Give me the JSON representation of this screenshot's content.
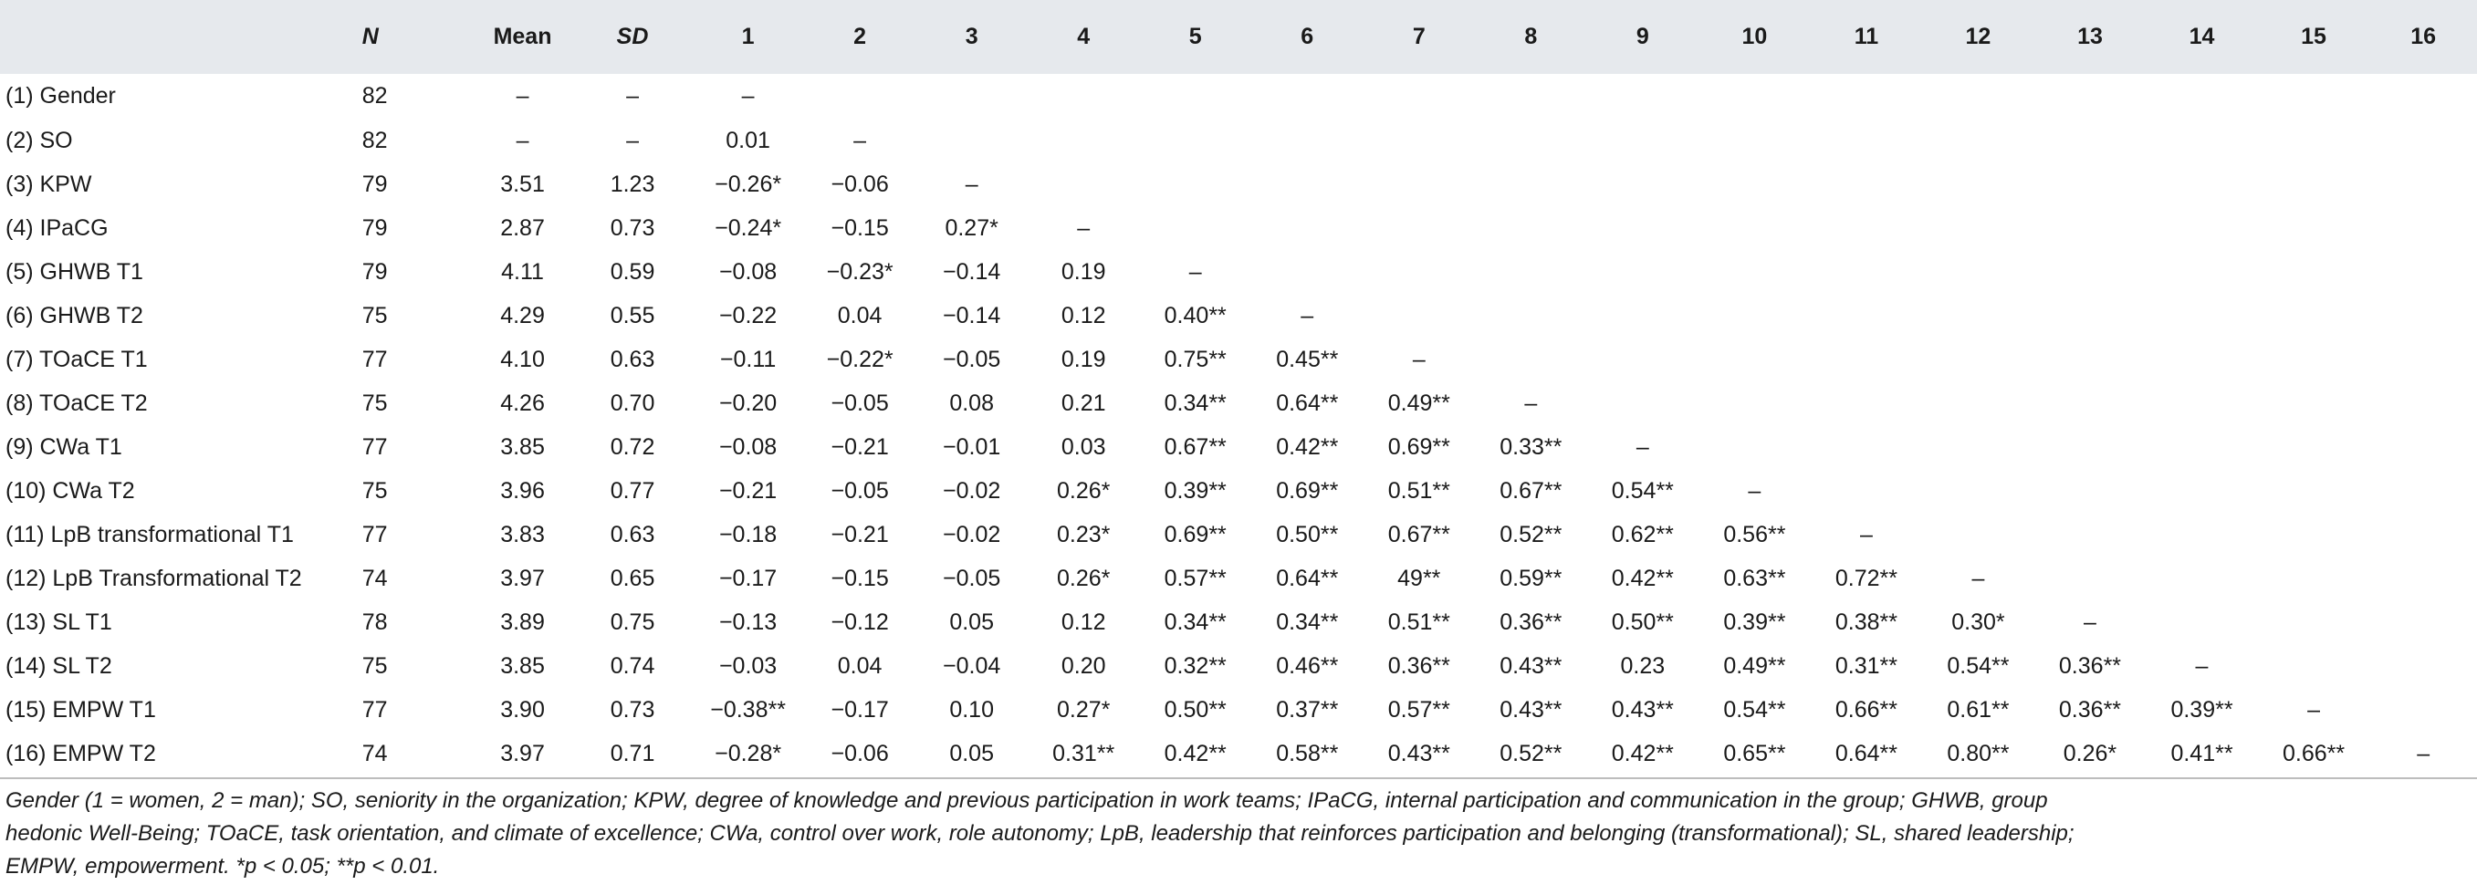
{
  "table": {
    "headers": [
      "",
      "N",
      "Mean",
      "SD",
      "1",
      "2",
      "3",
      "4",
      "5",
      "6",
      "7",
      "8",
      "9",
      "10",
      "11",
      "12",
      "13",
      "14",
      "15",
      "16"
    ],
    "rows": [
      [
        "(1) Gender",
        "82",
        "–",
        "–",
        "–",
        "",
        "",
        "",
        "",
        "",
        "",
        "",
        "",
        "",
        "",
        "",
        "",
        "",
        "",
        ""
      ],
      [
        "(2) SO",
        "82",
        "–",
        "–",
        "0.01",
        "–",
        "",
        "",
        "",
        "",
        "",
        "",
        "",
        "",
        "",
        "",
        "",
        "",
        "",
        ""
      ],
      [
        "(3) KPW",
        "79",
        "3.51",
        "1.23",
        "−0.26*",
        "−0.06",
        "–",
        "",
        "",
        "",
        "",
        "",
        "",
        "",
        "",
        "",
        "",
        "",
        "",
        ""
      ],
      [
        "(4) IPaCG",
        "79",
        "2.87",
        "0.73",
        "−0.24*",
        "−0.15",
        "0.27*",
        "–",
        "",
        "",
        "",
        "",
        "",
        "",
        "",
        "",
        "",
        "",
        "",
        ""
      ],
      [
        "(5) GHWB T1",
        "79",
        "4.11",
        "0.59",
        "−0.08",
        "−0.23*",
        "−0.14",
        "0.19",
        "–",
        "",
        "",
        "",
        "",
        "",
        "",
        "",
        "",
        "",
        "",
        ""
      ],
      [
        "(6) GHWB T2",
        "75",
        "4.29",
        "0.55",
        "−0.22",
        "0.04",
        "−0.14",
        "0.12",
        "0.40**",
        "–",
        "",
        "",
        "",
        "",
        "",
        "",
        "",
        "",
        "",
        ""
      ],
      [
        "(7) TOaCE T1",
        "77",
        "4.10",
        "0.63",
        "−0.11",
        "−0.22*",
        "−0.05",
        "0.19",
        "0.75**",
        "0.45**",
        "–",
        "",
        "",
        "",
        "",
        "",
        "",
        "",
        "",
        ""
      ],
      [
        "(8) TOaCE T2",
        "75",
        "4.26",
        "0.70",
        "−0.20",
        "−0.05",
        "0.08",
        "0.21",
        "0.34**",
        "0.64**",
        "0.49**",
        "–",
        "",
        "",
        "",
        "",
        "",
        "",
        "",
        ""
      ],
      [
        "(9) CWa T1",
        "77",
        "3.85",
        "0.72",
        "−0.08",
        "−0.21",
        "−0.01",
        "0.03",
        "0.67**",
        "0.42**",
        "0.69**",
        "0.33**",
        "–",
        "",
        "",
        "",
        "",
        "",
        "",
        ""
      ],
      [
        "(10) CWa T2",
        "75",
        "3.96",
        "0.77",
        "−0.21",
        "−0.05",
        "−0.02",
        "0.26*",
        "0.39**",
        "0.69**",
        "0.51**",
        "0.67**",
        "0.54**",
        "–",
        "",
        "",
        "",
        "",
        "",
        ""
      ],
      [
        "(11) LpB transformational T1",
        "77",
        "3.83",
        "0.63",
        "−0.18",
        "−0.21",
        "−0.02",
        "0.23*",
        "0.69**",
        "0.50**",
        "0.67**",
        "0.52**",
        "0.62**",
        "0.56**",
        "–",
        "",
        "",
        "",
        "",
        ""
      ],
      [
        "(12) LpB Transformational T2",
        "74",
        "3.97",
        "0.65",
        "−0.17",
        "−0.15",
        "−0.05",
        "0.26*",
        "0.57**",
        "0.64**",
        "49**",
        "0.59**",
        "0.42**",
        "0.63**",
        "0.72**",
        "–",
        "",
        "",
        "",
        ""
      ],
      [
        "(13) SL T1",
        "78",
        "3.89",
        "0.75",
        "−0.13",
        "−0.12",
        "0.05",
        "0.12",
        "0.34**",
        "0.34**",
        "0.51**",
        "0.36**",
        "0.50**",
        "0.39**",
        "0.38**",
        "0.30*",
        "–",
        "",
        "",
        ""
      ],
      [
        "(14) SL T2",
        "75",
        "3.85",
        "0.74",
        "−0.03",
        "0.04",
        "−0.04",
        "0.20",
        "0.32**",
        "0.46**",
        "0.36**",
        "0.43**",
        "0.23",
        "0.49**",
        "0.31**",
        "0.54**",
        "0.36**",
        "–",
        "",
        ""
      ],
      [
        "(15) EMPW T1",
        "77",
        "3.90",
        "0.73",
        "−0.38**",
        "−0.17",
        "0.10",
        "0.27*",
        "0.50**",
        "0.37**",
        "0.57**",
        "0.43**",
        "0.43**",
        "0.54**",
        "0.66**",
        "0.61**",
        "0.36**",
        "0.39**",
        "–",
        ""
      ],
      [
        "(16) EMPW T2",
        "74",
        "3.97",
        "0.71",
        "−0.28*",
        "−0.06",
        "0.05",
        "0.31**",
        "0.42**",
        "0.58**",
        "0.43**",
        "0.52**",
        "0.42**",
        "0.65**",
        "0.64**",
        "0.80**",
        "0.26*",
        "0.41**",
        "0.66**",
        "–"
      ]
    ]
  },
  "footnote": {
    "line1": "Gender (1 = women, 2 = man); SO, seniority in the organization; KPW, degree of knowledge and previous participation in work teams; IPaCG, internal participation and communication in the group; GHWB, group",
    "line2": "hedonic Well-Being; TOaCE, task orientation, and climate of excellence; CWa, control over work, role autonomy; LpB, leadership that reinforces participation and belonging (transformational); SL, shared leadership;",
    "line3": "EMPW, empowerment. *p < 0.05; **p < 0.01."
  }
}
